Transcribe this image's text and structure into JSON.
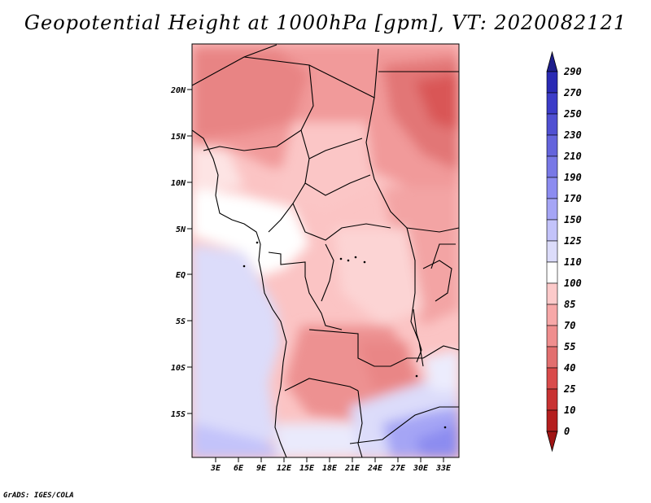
{
  "title": "Geopotential Height at 1000hPa [gpm], VT: 2020082121",
  "footer": "GrADS: IGES/COLA",
  "map": {
    "variable": "Geopotential Height",
    "level": "1000hPa",
    "units": "gpm",
    "valid_time": "2020082121",
    "lat_labels": [
      "20N",
      "15N",
      "10N",
      "5N",
      "EQ",
      "5S",
      "10S",
      "15S"
    ],
    "lon_labels": [
      "3E",
      "6E",
      "9E",
      "12E",
      "15E",
      "18E",
      "21E",
      "24E",
      "27E",
      "30E",
      "33E"
    ]
  },
  "colorbar": {
    "labels": [
      "290",
      "270",
      "250",
      "230",
      "210",
      "190",
      "170",
      "150",
      "125",
      "110",
      "100",
      "85",
      "70",
      "55",
      "40",
      "25",
      "10",
      "0"
    ],
    "colors": [
      "#1e1e8c",
      "#2a2ab4",
      "#3c3cc8",
      "#5050d2",
      "#6464dc",
      "#7878e6",
      "#8c8cf0",
      "#a5a5f5",
      "#c3c3fa",
      "#dcdcfa",
      "#ffffff",
      "#fccaca",
      "#f7a8a8",
      "#ef8e8e",
      "#e26f6f",
      "#d94b4b",
      "#c83232",
      "#b41e1e",
      "#a01414"
    ]
  }
}
